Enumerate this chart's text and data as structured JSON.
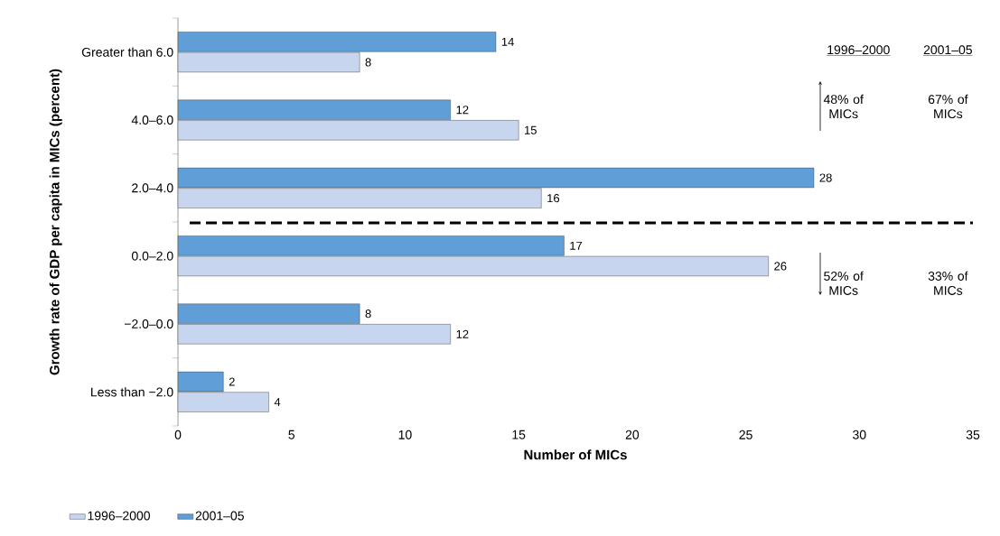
{
  "chart_data": {
    "type": "bar",
    "orientation": "horizontal",
    "categories": [
      "Greater than 6.0",
      "4.0–6.0",
      "2.0–4.0",
      "0.0–2.0",
      "−2.0–0.0",
      "Less than −2.0"
    ],
    "series": [
      {
        "name": "1996–2000",
        "color": "#c8d5ee",
        "values": [
          8,
          15,
          16,
          26,
          12,
          4
        ]
      },
      {
        "name": "2001–05",
        "color": "#5f9ed6",
        "values": [
          14,
          12,
          28,
          17,
          8,
          2
        ]
      }
    ],
    "xlabel": "Number of MICs",
    "ylabel": "Growth rate of GDP per capita in MICs (percent)",
    "xlim": [
      0,
      35
    ],
    "xticks": [
      0,
      5,
      10,
      15,
      20,
      25,
      30,
      35
    ],
    "data_labels": true,
    "legend": "bottom left",
    "grid": false,
    "annotations": [
      "1996–2000",
      "2001–05",
      "48% of MICs",
      "67% of MICs",
      "52% of MICs",
      "33% of MICs"
    ]
  }
}
